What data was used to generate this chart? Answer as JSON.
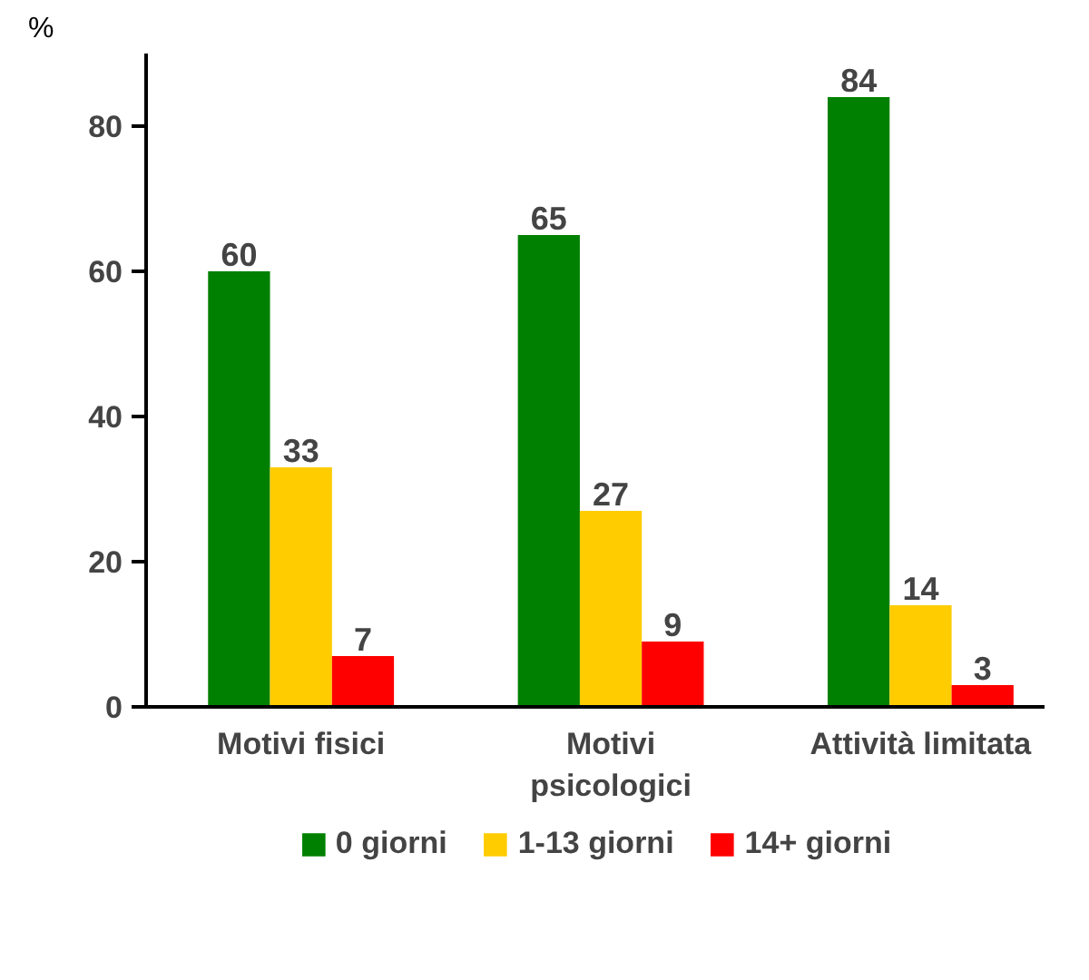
{
  "chart_data": {
    "type": "bar",
    "ylabel": "%",
    "categories": [
      "Motivi fisici",
      "Motivi\npsicologici",
      "Attività limitata"
    ],
    "series": [
      {
        "name": "0 giorni",
        "color": "#008000",
        "values": [
          60,
          65,
          84
        ]
      },
      {
        "name": "1-13 giorni",
        "color": "#ffcc00",
        "values": [
          33,
          27,
          14
        ]
      },
      {
        "name": "14+ giorni",
        "color": "#ff0000",
        "values": [
          7,
          9,
          3
        ]
      }
    ],
    "ylim": [
      0,
      90
    ],
    "yticks": [
      0,
      20,
      40,
      60,
      80
    ],
    "grid": false,
    "legend": "bottom",
    "data_labels": true
  }
}
